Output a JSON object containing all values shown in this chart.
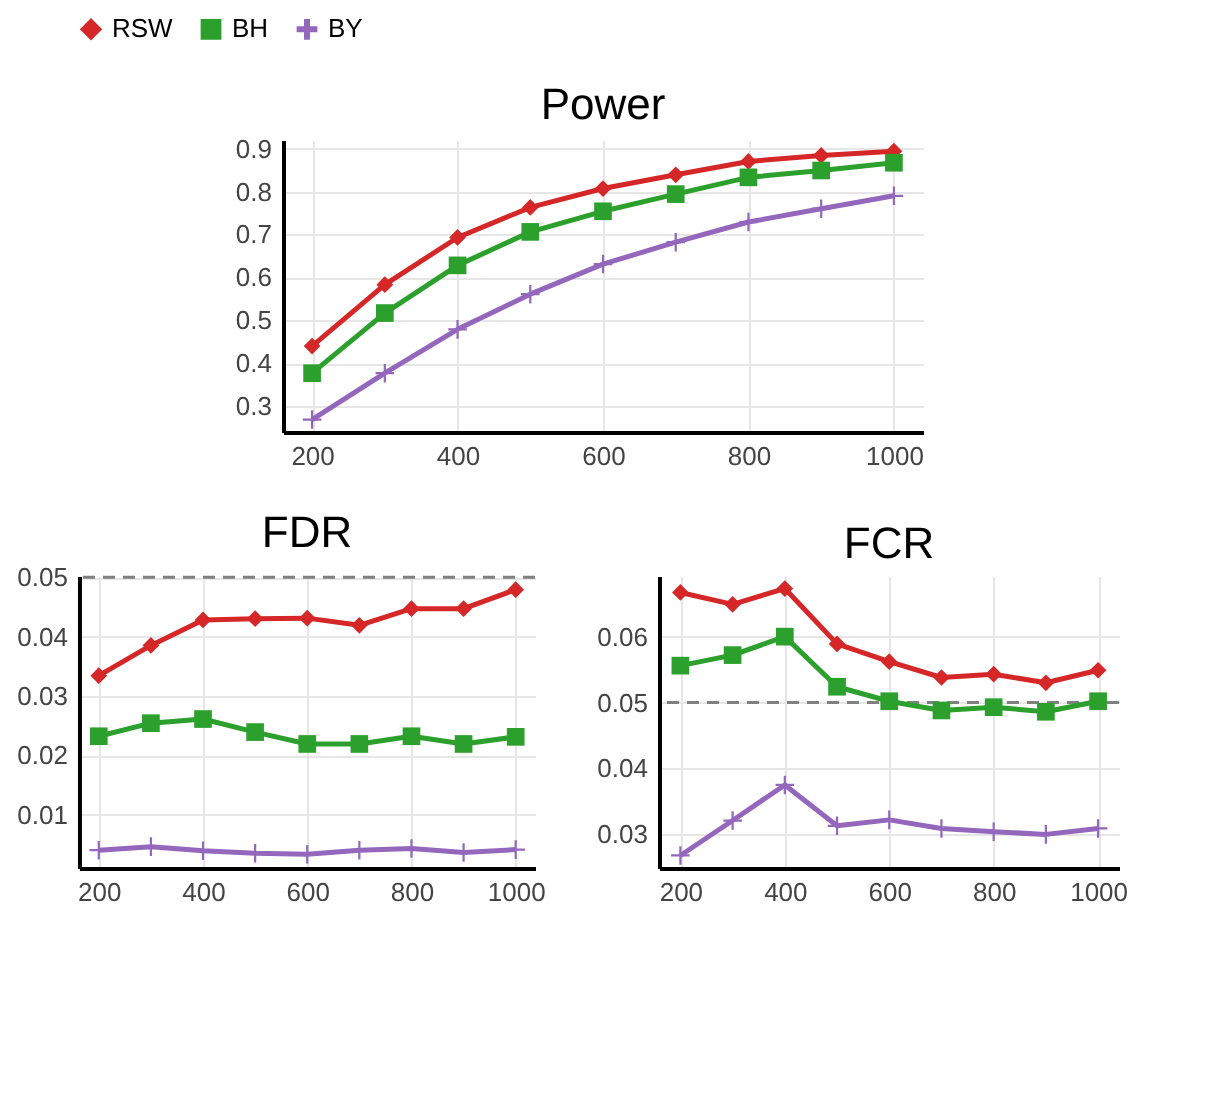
{
  "chart_data": [
    {
      "type": "line",
      "title": "Power",
      "legend": "top",
      "grid": true,
      "x": [
        200,
        300,
        400,
        500,
        600,
        700,
        800,
        900,
        1000
      ],
      "xlim": [
        160,
        1040
      ],
      "xticks": [
        200,
        400,
        600,
        800,
        1000
      ],
      "ylim": [
        0.24,
        0.92
      ],
      "yticks": [
        0.3,
        0.4,
        0.5,
        0.6,
        0.7,
        0.8,
        0.9
      ],
      "series": [
        {
          "name": "RSW",
          "color": "#d62728",
          "marker": "diamond",
          "values": [
            0.44,
            0.583,
            0.693,
            0.763,
            0.807,
            0.839,
            0.87,
            0.884,
            0.894
          ]
        },
        {
          "name": "BH",
          "color": "#2ca02c",
          "marker": "square",
          "values": [
            0.377,
            0.517,
            0.628,
            0.706,
            0.754,
            0.794,
            0.833,
            0.849,
            0.867
          ]
        },
        {
          "name": "BY",
          "color": "#9467bd",
          "marker": "cross",
          "values": [
            0.269,
            0.377,
            0.479,
            0.561,
            0.631,
            0.682,
            0.729,
            0.76,
            0.79
          ]
        }
      ]
    },
    {
      "type": "line",
      "title": "FDR",
      "grid": true,
      "x": [
        200,
        300,
        400,
        500,
        600,
        700,
        800,
        900,
        1000
      ],
      "xlim": [
        162,
        1037
      ],
      "xticks": [
        200,
        400,
        600,
        800,
        1000
      ],
      "ylim": [
        0.001,
        0.0502
      ],
      "yticks": [
        0.01,
        0.02,
        0.03,
        0.04,
        0.05
      ],
      "ref_lines": [
        {
          "axis": "y",
          "value": 0.05,
          "color": "#808080",
          "line_style": "dashed"
        }
      ],
      "series": [
        {
          "name": "RSW",
          "color": "#d62728",
          "marker": "diamond",
          "values": [
            0.0334,
            0.0385,
            0.0428,
            0.043,
            0.0431,
            0.0419,
            0.0447,
            0.0447,
            0.0479
          ]
        },
        {
          "name": "BH",
          "color": "#2ca02c",
          "marker": "square",
          "values": [
            0.0232,
            0.0254,
            0.0261,
            0.0239,
            0.0219,
            0.0219,
            0.0232,
            0.0219,
            0.0231
          ]
        },
        {
          "name": "BY",
          "color": "#9467bd",
          "marker": "cross",
          "values": [
            0.004,
            0.0046,
            0.0039,
            0.0035,
            0.0033,
            0.004,
            0.0043,
            0.0036,
            0.0041
          ]
        }
      ]
    },
    {
      "type": "line",
      "title": "FCR",
      "grid": true,
      "x": [
        200,
        300,
        400,
        500,
        600,
        700,
        800,
        900,
        1000
      ],
      "xlim": [
        159,
        1040
      ],
      "xticks": [
        200,
        400,
        600,
        800,
        1000
      ],
      "ylim": [
        0.0249,
        0.0692
      ],
      "yticks": [
        0.03,
        0.04,
        0.05,
        0.06
      ],
      "ref_lines": [
        {
          "axis": "y",
          "value": 0.05,
          "color": "#808080",
          "line_style": "dashed"
        }
      ],
      "series": [
        {
          "name": "RSW",
          "color": "#d62728",
          "marker": "diamond",
          "values": [
            0.0667,
            0.0649,
            0.0673,
            0.0589,
            0.0562,
            0.0538,
            0.0543,
            0.053,
            0.0549
          ]
        },
        {
          "name": "BH",
          "color": "#2ca02c",
          "marker": "square",
          "values": [
            0.0556,
            0.0572,
            0.06,
            0.0524,
            0.0502,
            0.0488,
            0.0493,
            0.0486,
            0.0502
          ]
        },
        {
          "name": "BY",
          "color": "#9467bd",
          "marker": "cross",
          "values": [
            0.0268,
            0.0321,
            0.0375,
            0.0313,
            0.0322,
            0.0309,
            0.0304,
            0.03,
            0.0309
          ]
        }
      ]
    }
  ]
}
